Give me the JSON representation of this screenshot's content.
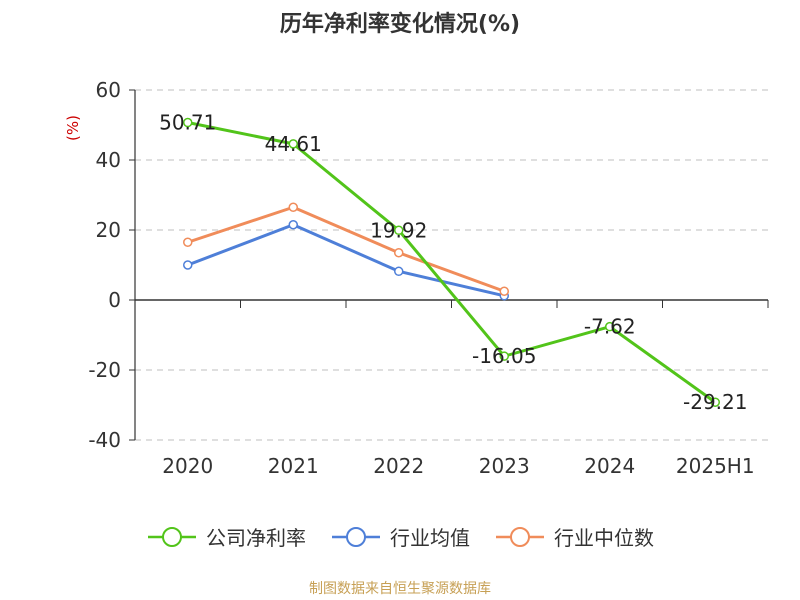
{
  "chart_data": {
    "type": "line",
    "title": "历年净利率变化情况(%)",
    "ylabel": "(%)",
    "xlabel": "",
    "categories": [
      "2020",
      "2021",
      "2022",
      "2023",
      "2024",
      "2025H1"
    ],
    "ylim": [
      -40,
      60
    ],
    "yticks": [
      60,
      40,
      20,
      0,
      -20,
      -40
    ],
    "grid": "horizontal-dashed",
    "legend_placement": "bottom",
    "series": [
      {
        "name": "公司净利率",
        "color": "#52c41a",
        "values": [
          50.71,
          44.61,
          19.92,
          -16.05,
          -7.62,
          -29.21
        ],
        "labels": [
          "50.71",
          "44.61",
          "19.92",
          "-16.05",
          "-7.62",
          "-29.21"
        ]
      },
      {
        "name": "行业均值",
        "color": "#4e7fd8",
        "values": [
          10.0,
          21.5,
          8.2,
          1.2,
          null,
          null
        ]
      },
      {
        "name": "行业中位数",
        "color": "#f08c5a",
        "values": [
          16.5,
          26.5,
          13.5,
          2.5,
          null,
          null
        ]
      }
    ]
  },
  "footer": "制图数据来自恒生聚源数据库"
}
